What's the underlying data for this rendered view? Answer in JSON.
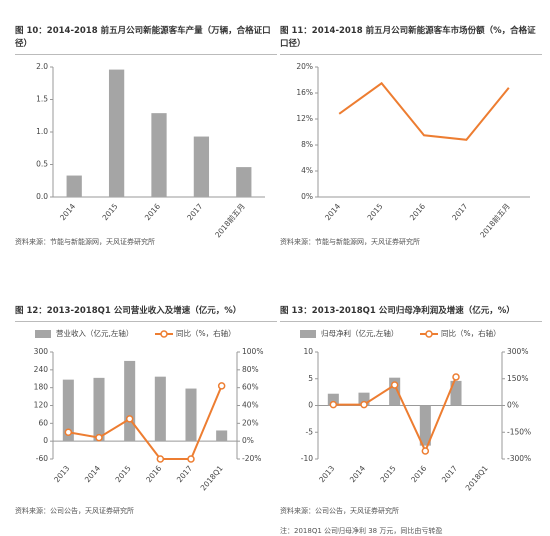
{
  "chart_data": [
    {
      "type": "bar",
      "title": "图 10：2014-2018 前五月公司新能源客车产量（万辆，合格证口径）",
      "categories": [
        "2014",
        "2015",
        "2016",
        "2017",
        "2018前五月"
      ],
      "values": [
        0.33,
        1.96,
        1.29,
        0.93,
        0.46
      ],
      "color": "#a5a5a5",
      "ylim": [
        0,
        2
      ],
      "yticks": [
        {
          "value": 0,
          "label": "0.0"
        },
        0.5,
        {
          "value": 1,
          "label": "1.0"
        },
        1.5,
        {
          "value": 2,
          "label": "2.0"
        }
      ],
      "source": "资料来源：节能与新能源网，天风证券研究所"
    },
    {
      "type": "line",
      "title": "图 11：2014-2018 前五月公司新能源客车市场份额（%，合格证口径）",
      "categories": [
        "2014",
        "2015",
        "2016",
        "2017",
        "2018前五月"
      ],
      "values": [
        12.8,
        17.5,
        9.5,
        8.8,
        16.8
      ],
      "color": "#ed7d31",
      "ylim": [
        0,
        20
      ],
      "yticks": [
        {
          "value": 0,
          "label": "0%"
        },
        {
          "value": 4,
          "label": "4%"
        },
        {
          "value": 8,
          "label": "8%"
        },
        {
          "value": 12,
          "label": "12%"
        },
        {
          "value": 16,
          "label": "16%"
        },
        {
          "value": 20,
          "label": "20%"
        }
      ],
      "source": "资料来源：节能与新能源网，天风证券研究所"
    },
    {
      "type": "combo",
      "title": "图 12：2013-2018Q1 公司营业收入及增速（亿元，%）",
      "categories": [
        "2013",
        "2014",
        "2015",
        "2016",
        "2017",
        "2018Q1"
      ],
      "series": [
        {
          "name": "营业收入（亿元,左轴）",
          "type": "bar",
          "color": "#a5a5a5",
          "values": [
            207,
            213,
            270,
            217,
            177,
            36
          ]
        },
        {
          "name": "同比（%，右轴）",
          "type": "line",
          "axis": "y2",
          "color": "#ed7d31",
          "values": [
            10,
            4,
            25,
            -20,
            -20,
            62
          ]
        }
      ],
      "ylim": [
        -60,
        300
      ],
      "yticks": [
        -60,
        0,
        60,
        120,
        180,
        240,
        300
      ],
      "y2lim": [
        -20,
        100
      ],
      "y2ticks": [
        {
          "value": -20,
          "label": "-20%"
        },
        {
          "value": 0,
          "label": "0%"
        },
        {
          "value": 20,
          "label": "20%"
        },
        {
          "value": 40,
          "label": "40%"
        },
        {
          "value": 60,
          "label": "60%"
        },
        {
          "value": 80,
          "label": "80%"
        },
        {
          "value": 100,
          "label": "100%"
        }
      ],
      "source": "资料来源：公司公告，天风证券研究所"
    },
    {
      "type": "combo",
      "title": "图 13：2013-2018Q1 公司归母净利润及增速（亿元，%）",
      "categories": [
        "2013",
        "2014",
        "2015",
        "2016",
        "2017",
        "2018Q1"
      ],
      "series": [
        {
          "name": "归母净利（亿元,左轴）",
          "type": "bar",
          "color": "#a5a5a5",
          "values": [
            2.2,
            2.4,
            5.2,
            -7.5,
            4.6,
            0.0038
          ]
        },
        {
          "name": "同比（%，右轴）",
          "type": "line",
          "axis": "y2",
          "color": "#ed7d31",
          "values": [
            5,
            5,
            115,
            -255,
            160,
            null
          ]
        }
      ],
      "ylim": [
        -10,
        10
      ],
      "yticks": [
        -10,
        -5,
        0,
        5,
        10
      ],
      "y2lim": [
        -300,
        300
      ],
      "y2ticks": [
        {
          "value": -300,
          "label": "-300%"
        },
        {
          "value": -150,
          "label": "-150%"
        },
        {
          "value": 0,
          "label": "0%"
        },
        {
          "value": 150,
          "label": "150%"
        },
        {
          "value": 300,
          "label": "300%"
        }
      ],
      "source": "资料来源：公司公告，天风证券研究所",
      "note": "注：2018Q1 公司归母净利 38 万元，同比由亏转盈"
    }
  ]
}
